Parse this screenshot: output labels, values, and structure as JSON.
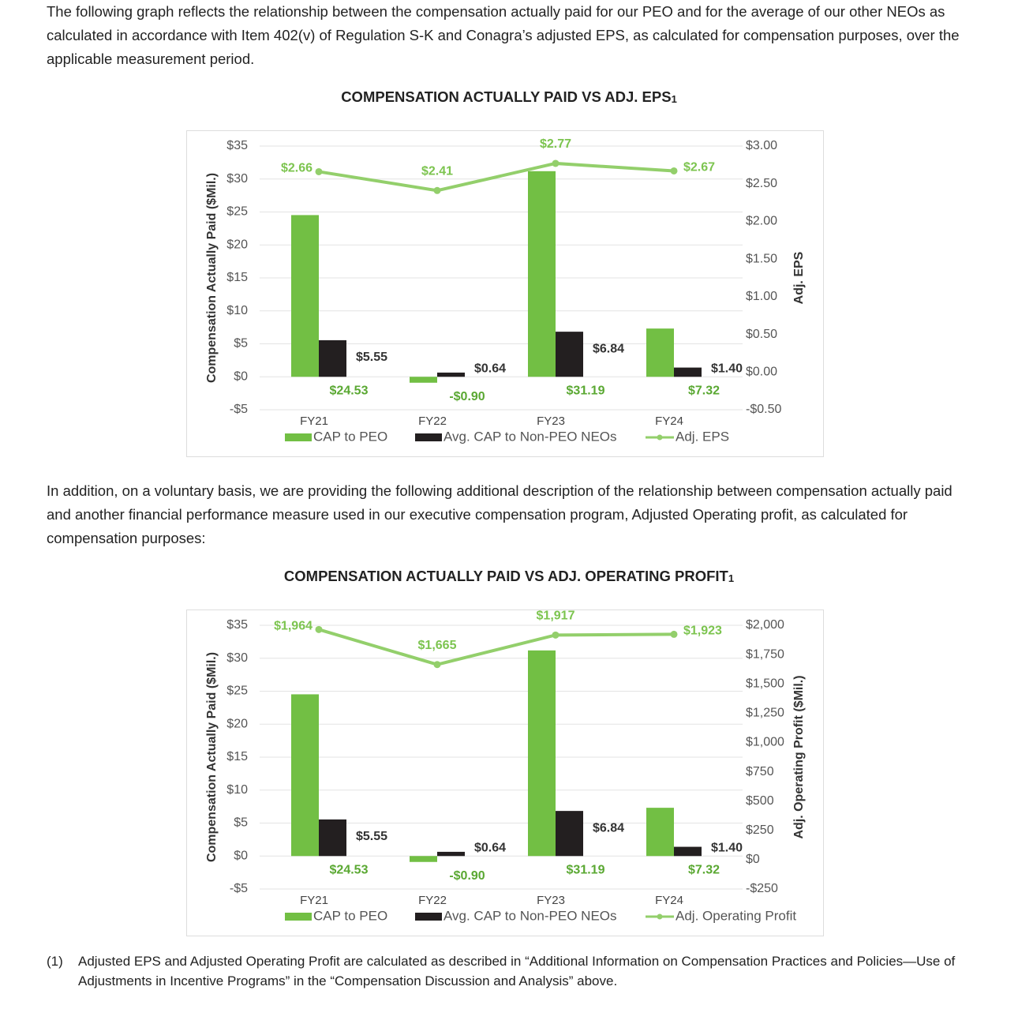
{
  "paragraphs": [
    "The following graph reflects the relationship between the compensation actually paid for our PEO and for the average of our other NEOs as calculated in accordance with Item 402(v) of Regulation S-K and Conagra’s adjusted EPS, as calculated for compensation purposes, over the applicable measurement period.",
    "In addition, on a voluntary basis, we are providing the following additional description of the relationship between compensation actually paid and another financial performance measure used in our executive compensation program, Adjusted Operating profit, as calculated for compensation purposes:"
  ],
  "footnote": {
    "marker": "(1)",
    "text": "Adjusted EPS and Adjusted Operating Profit are calculated as described in “Additional Information on Compensation Practices and Policies—Use of Adjustments in Incentive Programs” in the “Compensation Discussion and Analysis” above."
  },
  "chart_data": [
    {
      "type": "bar",
      "title": "COMPENSATION ACTUALLY PAID VS ADJ. EPS",
      "title_note": "1",
      "ylabel": "Compensation Actually Paid ($Mil.)",
      "y2label": "Adj. EPS",
      "categories": [
        "FY21",
        "FY22",
        "FY23",
        "FY24"
      ],
      "series": [
        {
          "name": "CAP to PEO",
          "color": "#72bf44",
          "values": [
            24.53,
            -0.9,
            31.19,
            7.32
          ],
          "value_labels": [
            "$24.53",
            "-$0.90",
            "$31.19",
            "$7.32"
          ]
        },
        {
          "name": "Avg. CAP to Non-PEO NEOs",
          "color": "#231f20",
          "values": [
            5.55,
            0.64,
            6.84,
            1.4
          ],
          "value_labels": [
            "$5.55",
            "$0.64",
            "$6.84",
            "$1.40"
          ]
        },
        {
          "name": "Adj. EPS",
          "color": "#93cf6b",
          "axis": "y2",
          "type": "line",
          "values": [
            2.66,
            2.41,
            2.77,
            2.67
          ],
          "value_labels": [
            "$2.66",
            "$2.41",
            "$2.77",
            "$2.67"
          ]
        }
      ],
      "ylim": [
        -5,
        35
      ],
      "yticks": [
        {
          "value": -5,
          "label": "-$5"
        },
        {
          "value": 0,
          "label": "$0"
        },
        {
          "value": 5,
          "label": "$5"
        },
        {
          "value": 10,
          "label": "$10"
        },
        {
          "value": 15,
          "label": "$15"
        },
        {
          "value": 20,
          "label": "$20"
        },
        {
          "value": 25,
          "label": "$25"
        },
        {
          "value": 30,
          "label": "$30"
        },
        {
          "value": 35,
          "label": "$35"
        }
      ],
      "y2lim": [
        -0.5,
        3.0
      ],
      "y2ticks": [
        {
          "value": -0.5,
          "label": "-$0.50"
        },
        {
          "value": 0,
          "label": "$0.00"
        },
        {
          "value": 0.5,
          "label": "$0.50"
        },
        {
          "value": 1.0,
          "label": "$1.00"
        },
        {
          "value": 1.5,
          "label": "$1.50"
        },
        {
          "value": 2.0,
          "label": "$2.00"
        },
        {
          "value": 2.5,
          "label": "$2.50"
        },
        {
          "value": 3.0,
          "label": "$3.00"
        }
      ],
      "grid": true,
      "legend": "bottom"
    },
    {
      "type": "bar",
      "title": "COMPENSATION ACTUALLY PAID VS ADJ. OPERATING PROFIT",
      "title_note": "1",
      "ylabel": "Compensation Actually Paid ($Mil.)",
      "y2label": "Adj. Operating Profit ($Mil.)",
      "categories": [
        "FY21",
        "FY22",
        "FY23",
        "FY24"
      ],
      "series": [
        {
          "name": "CAP to PEO",
          "color": "#72bf44",
          "values": [
            24.53,
            -0.9,
            31.19,
            7.32
          ],
          "value_labels": [
            "$24.53",
            "-$0.90",
            "$31.19",
            "$7.32"
          ]
        },
        {
          "name": "Avg. CAP to Non-PEO NEOs",
          "color": "#231f20",
          "values": [
            5.55,
            0.64,
            6.84,
            1.4
          ],
          "value_labels": [
            "$5.55",
            "$0.64",
            "$6.84",
            "$1.40"
          ]
        },
        {
          "name": "Adj. Operating Profit",
          "color": "#93cf6b",
          "axis": "y2",
          "type": "line",
          "values": [
            1964,
            1665,
            1917,
            1923
          ],
          "value_labels": [
            "$1,964",
            "$1,665",
            "$1,917",
            "$1,923"
          ]
        }
      ],
      "ylim": [
        -5,
        35
      ],
      "yticks": [
        {
          "value": -5,
          "label": "-$5"
        },
        {
          "value": 0,
          "label": "$0"
        },
        {
          "value": 5,
          "label": "$5"
        },
        {
          "value": 10,
          "label": "$10"
        },
        {
          "value": 15,
          "label": "$15"
        },
        {
          "value": 20,
          "label": "$20"
        },
        {
          "value": 25,
          "label": "$25"
        },
        {
          "value": 30,
          "label": "$30"
        },
        {
          "value": 35,
          "label": "$35"
        }
      ],
      "y2lim": [
        -250,
        2000
      ],
      "y2ticks": [
        {
          "value": -250,
          "label": "-$250"
        },
        {
          "value": 0,
          "label": "$0"
        },
        {
          "value": 250,
          "label": "$250"
        },
        {
          "value": 500,
          "label": "$500"
        },
        {
          "value": 750,
          "label": "$750"
        },
        {
          "value": 1000,
          "label": "$1,000"
        },
        {
          "value": 1250,
          "label": "$1,250"
        },
        {
          "value": 1500,
          "label": "$1,500"
        },
        {
          "value": 1750,
          "label": "$1,750"
        },
        {
          "value": 2000,
          "label": "$2,000"
        }
      ],
      "grid": true,
      "legend": "bottom"
    }
  ]
}
